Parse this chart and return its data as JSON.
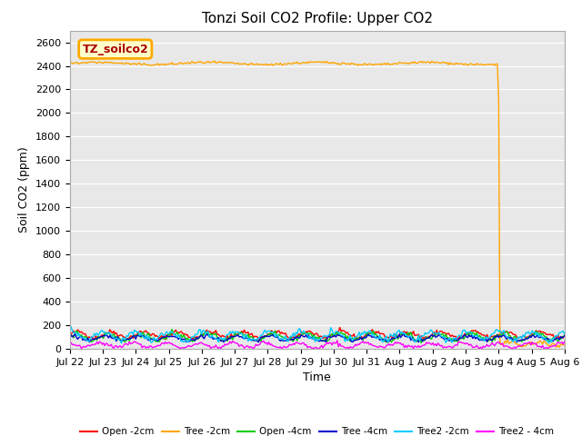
{
  "title": "Tonzi Soil CO2 Profile: Upper CO2",
  "ylabel": "Soil CO2 (ppm)",
  "xlabel": "Time",
  "ylim": [
    0,
    2700
  ],
  "yticks": [
    0,
    200,
    400,
    600,
    800,
    1000,
    1200,
    1400,
    1600,
    1800,
    2000,
    2200,
    2400,
    2600
  ],
  "background_color": "#e8e8e8",
  "title_fontsize": 11,
  "label_fontsize": 9,
  "tick_fontsize": 8,
  "legend_label": "TZ_soilco2",
  "legend_bg": "#ffffcc",
  "legend_border": "#ffaa00",
  "series": [
    {
      "name": "Open -2cm",
      "color": "#ff0000",
      "base": 120,
      "amp": 25,
      "phase": 0.0
    },
    {
      "name": "Tree -2cm",
      "color": "#ffa500",
      "base": 2420,
      "amp": 15,
      "phase": 0.3
    },
    {
      "name": "Open -4cm",
      "color": "#00cc00",
      "base": 100,
      "amp": 30,
      "phase": 0.5
    },
    {
      "name": "Tree -4cm",
      "color": "#0000cc",
      "base": 90,
      "amp": 20,
      "phase": 1.0
    },
    {
      "name": "Tree2 -2cm",
      "color": "#00ccff",
      "base": 110,
      "amp": 35,
      "phase": 1.5
    },
    {
      "name": "Tree2 - 4cm",
      "color": "#ff00ff",
      "base": 30,
      "amp": 20,
      "phase": 2.0
    }
  ],
  "n_points": 384,
  "x_start_day": 0,
  "x_end_day": 15,
  "xtick_labels": [
    "Jul 22",
    "Jul 23",
    "Jul 24",
    "Jul 25",
    "Jul 26",
    "Jul 27",
    "Jul 28",
    "Jul 29",
    "Jul 30",
    "Jul 31",
    "Aug 1",
    "Aug 2",
    "Aug 3",
    "Aug 4",
    "Aug 5",
    "Aug 6"
  ],
  "xtick_positions": [
    0,
    1,
    2,
    3,
    4,
    5,
    6,
    7,
    8,
    9,
    10,
    11,
    12,
    13,
    14,
    15
  ],
  "fig_width": 6.4,
  "fig_height": 4.8,
  "dpi": 100
}
